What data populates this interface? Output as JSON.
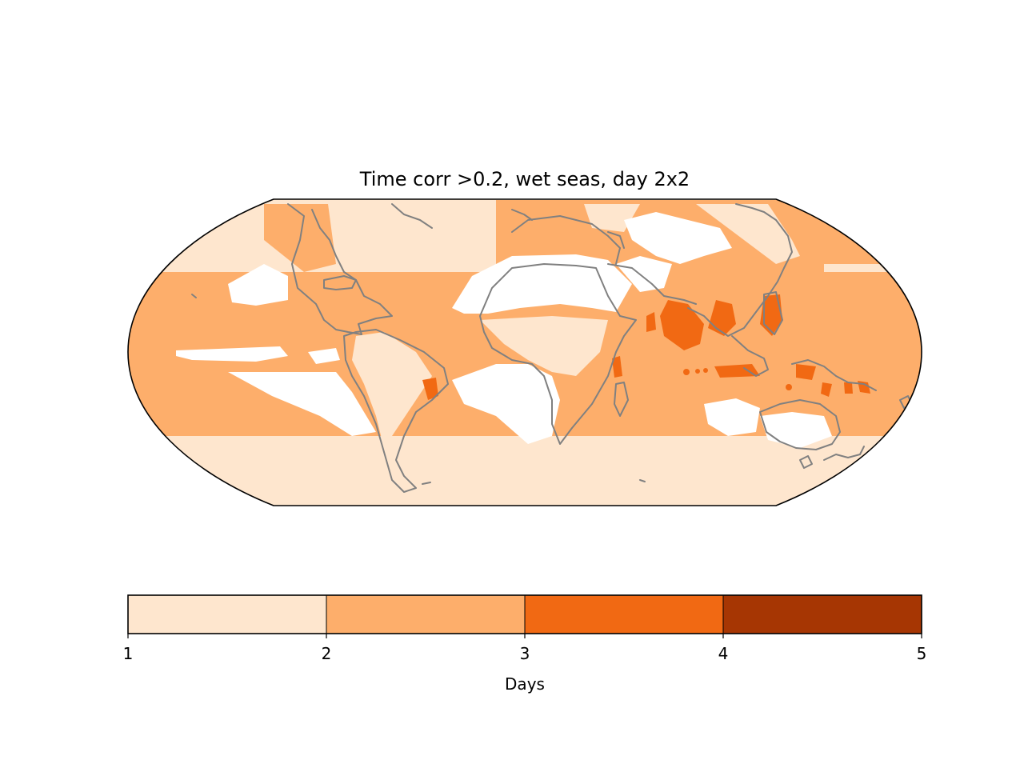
{
  "title": "Time corr >0.2, wet seas, day 2x2",
  "colorbar": {
    "label": "Days",
    "ticks": [
      "1",
      "2",
      "3",
      "4",
      "5"
    ],
    "bins": [
      {
        "from": 1,
        "to": 2,
        "color": "#fee6ce"
      },
      {
        "from": 2,
        "to": 3,
        "color": "#fdae6b"
      },
      {
        "from": 3,
        "to": 4,
        "color": "#f16913"
      },
      {
        "from": 4,
        "to": 5,
        "color": "#a63603"
      }
    ]
  },
  "map": {
    "projection": "Robinson",
    "coastline_color": "#808080",
    "no_data_color": "#ffffff"
  }
}
